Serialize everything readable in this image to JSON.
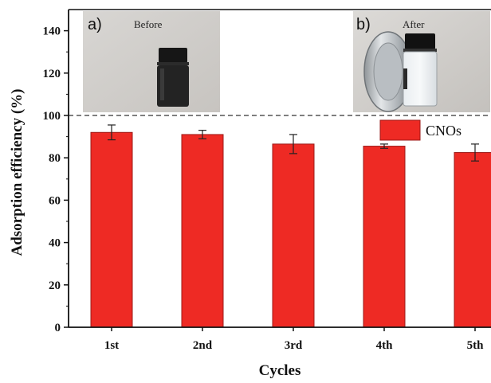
{
  "chart_data": {
    "type": "bar",
    "categories": [
      "1st",
      "2nd",
      "3rd",
      "4th",
      "5th"
    ],
    "series": [
      {
        "name": "CNOs",
        "values": [
          92,
          91,
          86.5,
          85.5,
          82.5
        ],
        "errors": [
          3.5,
          2.0,
          4.5,
          1.0,
          4.0
        ]
      }
    ],
    "xlabel": "Cycles",
    "ylabel": "Adsorption efficiency (%)",
    "ylim": [
      0,
      150
    ],
    "yticks": [
      0,
      20,
      40,
      60,
      80,
      100,
      120,
      140
    ],
    "reference_line": 100,
    "legend_position": "top-right",
    "colors": {
      "bar": "#ee2a24",
      "bar_edge": "#9c1a17",
      "axis": "#111111"
    }
  },
  "insets": [
    {
      "letter": "a)",
      "caption": "Before"
    },
    {
      "letter": "b)",
      "caption": "After"
    }
  ]
}
